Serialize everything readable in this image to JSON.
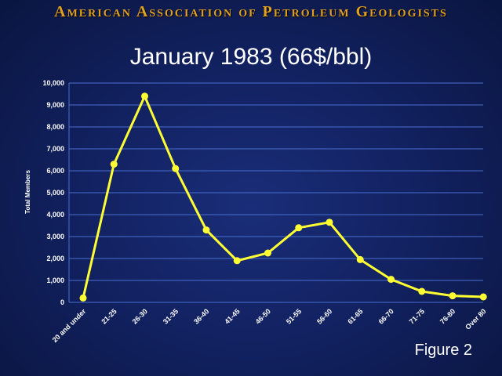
{
  "header": {
    "organization": "American Association of Petroleum Geologists"
  },
  "slide": {
    "title": "January 1983 (66$/bbl)",
    "footnote": "Figure 2"
  },
  "colors": {
    "background": "#122262",
    "header": "#e0a020",
    "series": "#ffff33",
    "grid": "#4a6fd0"
  },
  "chart_data": {
    "type": "line",
    "title": "January 1983 (66$/bbl)",
    "xlabel": "",
    "ylabel": "Total Members",
    "categories": [
      "20 and under",
      "21-25",
      "26-30",
      "31-35",
      "36-40",
      "41-45",
      "46-50",
      "51-55",
      "56-60",
      "61-65",
      "66-70",
      "71-75",
      "76-80",
      "Over 80"
    ],
    "values": [
      200,
      6300,
      9400,
      6100,
      3300,
      1900,
      2250,
      3400,
      3650,
      1950,
      1050,
      500,
      300,
      250
    ],
    "ylim": [
      0,
      10000
    ],
    "yticks": [
      0,
      1000,
      2000,
      3000,
      4000,
      5000,
      6000,
      7000,
      8000,
      9000,
      10000
    ],
    "ytick_labels": [
      "0",
      "1,000",
      "2,000",
      "3,000",
      "4,000",
      "5,000",
      "6,000",
      "7,000",
      "8,000",
      "9,000",
      "10,000"
    ],
    "grid": true,
    "legend": "none"
  }
}
